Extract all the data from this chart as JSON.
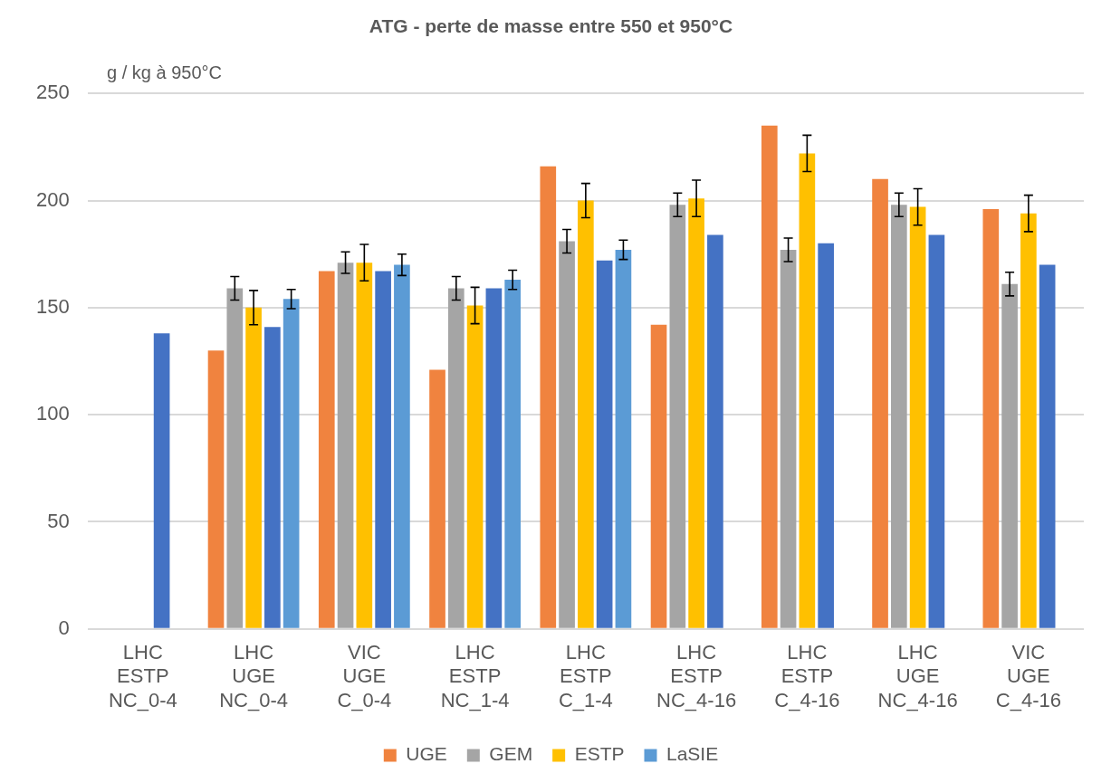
{
  "chart_data": {
    "type": "bar",
    "title": "ATG - perte de masse entre 550 et 950°C",
    "ylabel": "g / kg à 950°C",
    "categories": [
      "LHC\nESTP\nNC_0-4",
      "LHC\nUGE\nNC_0-4",
      "VIC\nUGE\nC_0-4",
      "LHC\nESTP\nNC_1-4",
      "LHC\nESTP\nC_1-4",
      "LHC\nESTP\nNC_4-16",
      "LHC\nESTP\nC_4-16",
      "LHC\nUGE\nNC_4-16",
      "VIC\nUGE\nC_4-16"
    ],
    "series": [
      {
        "name": "UGE",
        "color": "#f0833f",
        "values": [
          null,
          130,
          167,
          121,
          216,
          142,
          235,
          210,
          196
        ]
      },
      {
        "name": "GEM",
        "color": "#a5a5a5",
        "values": [
          null,
          159,
          171,
          159,
          181,
          198,
          177,
          198,
          161
        ],
        "errors": [
          null,
          5.5,
          5,
          5.5,
          5.5,
          5.5,
          5.5,
          5.5,
          5.5
        ]
      },
      {
        "name": "ESTP",
        "color": "#ffc000",
        "values": [
          null,
          150,
          171,
          151,
          200,
          201,
          222,
          197,
          194
        ],
        "errors": [
          null,
          8,
          8.5,
          8.5,
          8,
          8.5,
          8.5,
          8.5,
          8.5
        ]
      },
      {
        "color": "#4472c4",
        "values": [
          138,
          141,
          167,
          159,
          172,
          184,
          180,
          184,
          170
        ]
      },
      {
        "name": "LaSIE",
        "color": "#5b9bd5",
        "values": [
          null,
          154,
          170,
          163,
          177,
          null,
          null,
          null,
          null
        ],
        "errors": [
          null,
          4.5,
          5,
          4.5,
          4.5,
          null,
          null,
          null,
          null
        ]
      }
    ],
    "ylim": [
      0,
      250
    ],
    "yticks": [
      0,
      50,
      100,
      150,
      200,
      250
    ],
    "grid": "y",
    "legend": "bottom"
  }
}
